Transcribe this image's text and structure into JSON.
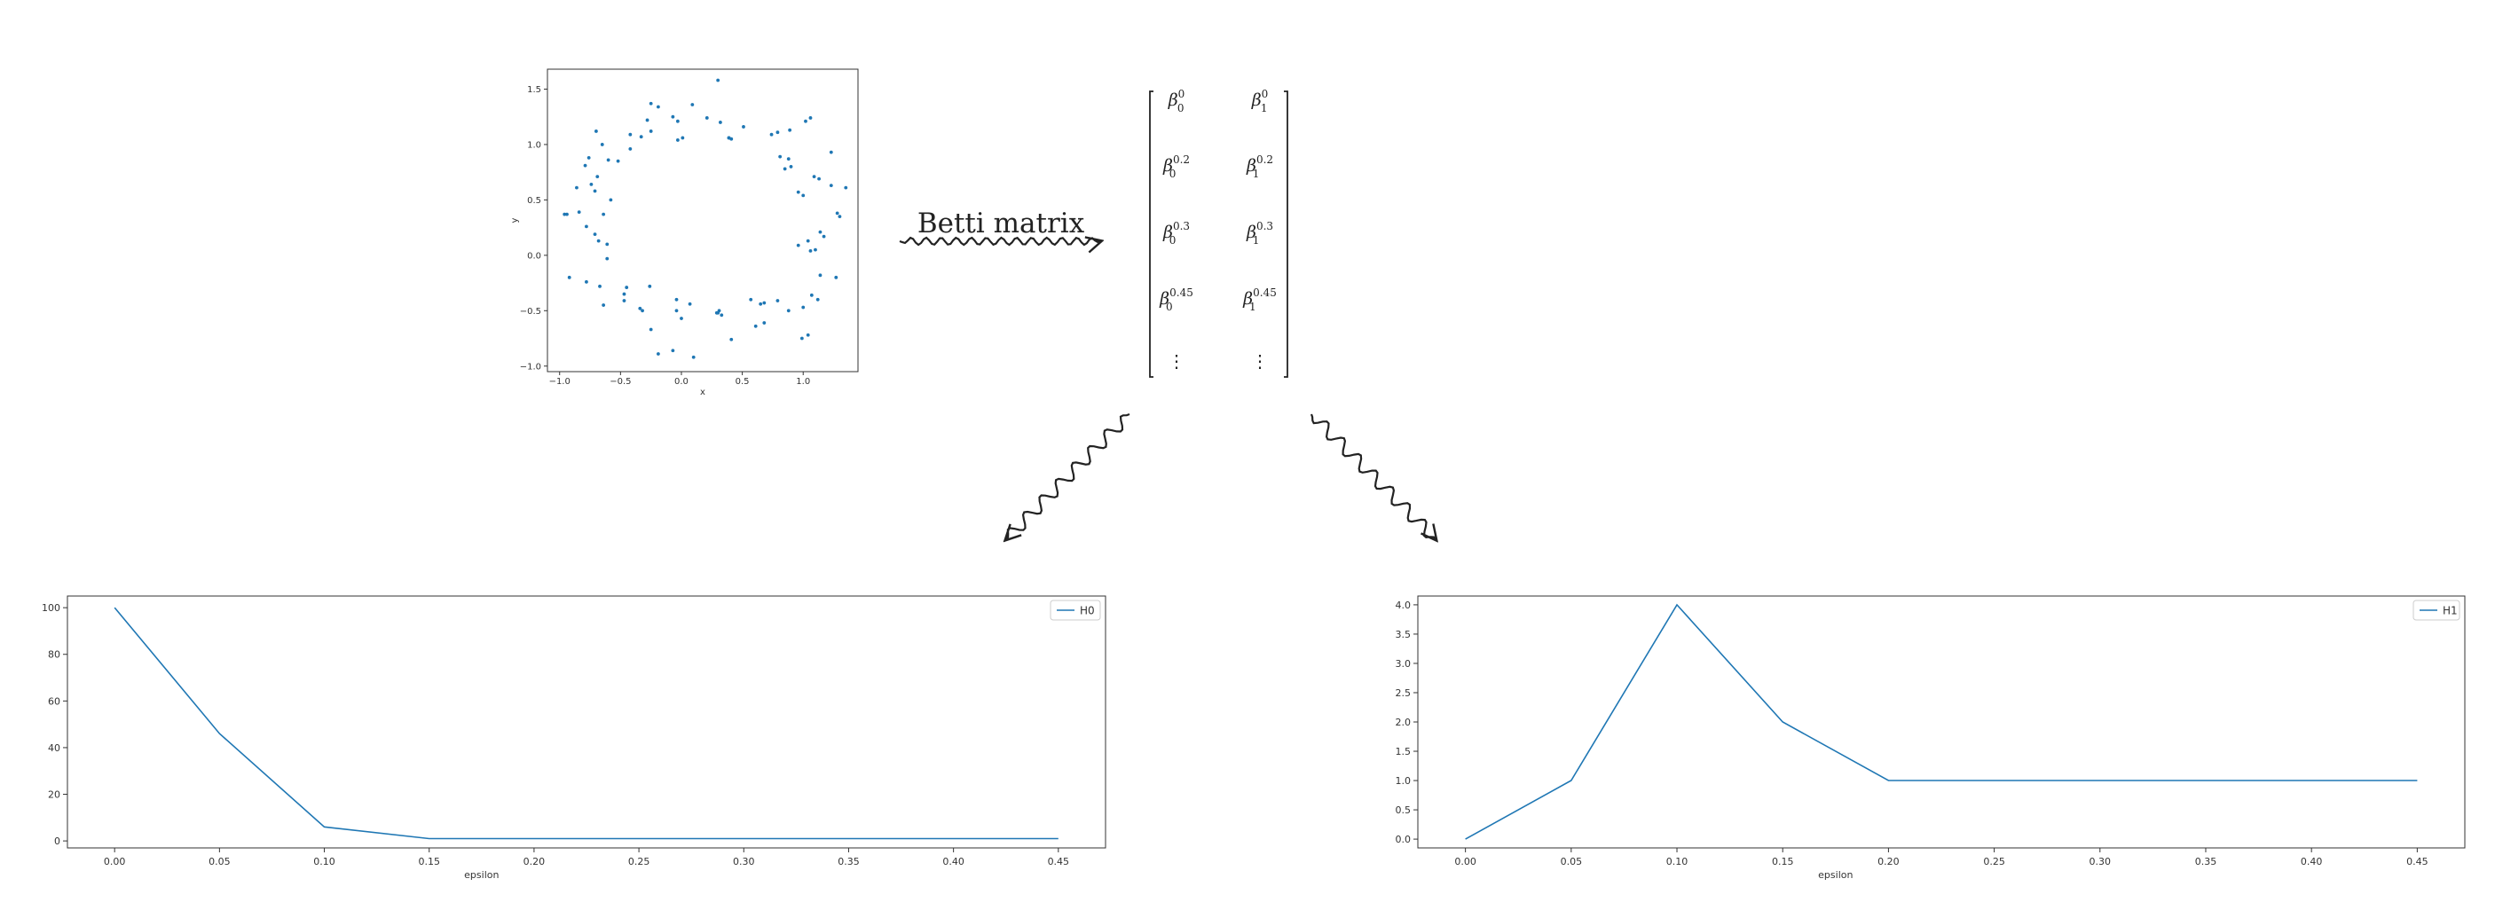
{
  "chart_data": [
    {
      "id": "scatter",
      "type": "scatter",
      "title": "",
      "xlabel": "x",
      "ylabel": "y",
      "xlim": [
        -1.1,
        1.45
      ],
      "ylim": [
        -1.05,
        1.68
      ],
      "xticks": [
        -1.0,
        -0.5,
        0.0,
        0.5,
        1.0
      ],
      "xtick_labels": [
        "−1.0",
        "−0.5",
        "0.0",
        "0.5",
        "1.0"
      ],
      "yticks": [
        -1.0,
        -0.5,
        0.0,
        0.5,
        1.0,
        1.5
      ],
      "ytick_labels": [
        "−1.0",
        "−0.5",
        "0.0",
        "0.5",
        "1.0",
        "1.5"
      ],
      "color": "#1f77b4",
      "points": [
        [
          0.3,
          1.58
        ],
        [
          0.09,
          1.36
        ],
        [
          0.21,
          1.24
        ],
        [
          0.51,
          1.16
        ],
        [
          0.39,
          1.06
        ],
        [
          -0.25,
          1.37
        ],
        [
          -0.19,
          1.34
        ],
        [
          -0.28,
          1.22
        ],
        [
          -0.33,
          1.07
        ],
        [
          -0.42,
          1.09
        ],
        [
          -0.25,
          1.12
        ],
        [
          -0.07,
          1.25
        ],
        [
          -0.03,
          1.04
        ],
        [
          0.01,
          1.06
        ],
        [
          -0.03,
          1.21
        ],
        [
          -0.7,
          1.12
        ],
        [
          -0.65,
          1.0
        ],
        [
          -0.6,
          0.86
        ],
        [
          -0.52,
          0.85
        ],
        [
          -0.42,
          0.96
        ],
        [
          -0.76,
          0.88
        ],
        [
          -0.79,
          0.81
        ],
        [
          -0.86,
          0.61
        ],
        [
          -0.74,
          0.64
        ],
        [
          -0.69,
          0.71
        ],
        [
          -0.71,
          0.58
        ],
        [
          -0.64,
          0.37
        ],
        [
          -0.58,
          0.5
        ],
        [
          -0.78,
          0.26
        ],
        [
          -0.96,
          0.37
        ],
        [
          -0.84,
          0.39
        ],
        [
          -0.71,
          0.19
        ],
        [
          -0.61,
          0.1
        ],
        [
          -0.68,
          0.13
        ],
        [
          -0.61,
          -0.03
        ],
        [
          -0.92,
          -0.2
        ],
        [
          -0.78,
          -0.24
        ],
        [
          -0.67,
          -0.28
        ],
        [
          -0.64,
          -0.45
        ],
        [
          -0.47,
          -0.35
        ],
        [
          -0.45,
          -0.29
        ],
        [
          -0.47,
          -0.41
        ],
        [
          -0.34,
          -0.48
        ],
        [
          -0.32,
          -0.5
        ],
        [
          -0.26,
          -0.28
        ],
        [
          -0.25,
          -0.67
        ],
        [
          -0.19,
          -0.89
        ],
        [
          -0.07,
          -0.86
        ],
        [
          0.1,
          -0.92
        ],
        [
          -0.04,
          -0.4
        ],
        [
          -0.04,
          -0.5
        ],
        [
          0.07,
          -0.44
        ],
        [
          0.0,
          -0.57
        ],
        [
          0.29,
          -0.52
        ],
        [
          0.33,
          -0.54
        ],
        [
          0.41,
          -0.76
        ],
        [
          0.57,
          -0.4
        ],
        [
          0.65,
          -0.44
        ],
        [
          0.68,
          -0.43
        ],
        [
          0.61,
          -0.64
        ],
        [
          0.68,
          -0.61
        ],
        [
          0.79,
          -0.41
        ],
        [
          0.88,
          -0.5
        ],
        [
          0.99,
          -0.75
        ],
        [
          1.04,
          -0.72
        ],
        [
          1.0,
          -0.47
        ],
        [
          1.07,
          -0.36
        ],
        [
          1.12,
          -0.4
        ],
        [
          1.14,
          -0.18
        ],
        [
          1.27,
          -0.2
        ],
        [
          0.96,
          0.09
        ],
        [
          1.04,
          0.13
        ],
        [
          1.06,
          0.04
        ],
        [
          1.1,
          0.05
        ],
        [
          1.14,
          0.21
        ],
        [
          1.17,
          0.17
        ],
        [
          1.0,
          0.54
        ],
        [
          1.09,
          0.71
        ],
        [
          1.13,
          0.69
        ],
        [
          1.23,
          0.63
        ],
        [
          1.35,
          0.61
        ],
        [
          1.28,
          0.38
        ],
        [
          1.3,
          0.35
        ],
        [
          1.23,
          0.93
        ],
        [
          0.96,
          0.57
        ],
        [
          0.85,
          0.78
        ],
        [
          0.9,
          0.8
        ],
        [
          0.88,
          0.87
        ],
        [
          0.81,
          0.89
        ],
        [
          0.74,
          1.09
        ],
        [
          0.79,
          1.11
        ],
        [
          0.89,
          1.13
        ],
        [
          1.02,
          1.21
        ],
        [
          1.06,
          1.24
        ],
        [
          0.32,
          1.2
        ],
        [
          0.41,
          1.05
        ],
        [
          0.39,
          1.06
        ],
        [
          -0.94,
          0.37
        ],
        [
          0.3,
          -0.52
        ],
        [
          0.31,
          -0.5
        ]
      ]
    },
    {
      "id": "h0",
      "type": "line",
      "title": "",
      "xlabel": "epsilon",
      "ylabel": "",
      "x": [
        0.0,
        0.05,
        0.1,
        0.15,
        0.2,
        0.25,
        0.3,
        0.35,
        0.4,
        0.45
      ],
      "xlim": [
        -0.0225,
        0.4725
      ],
      "ylim": [
        -3,
        105
      ],
      "xticks": [
        0.0,
        0.05,
        0.1,
        0.15,
        0.2,
        0.25,
        0.3,
        0.35,
        0.4,
        0.45
      ],
      "xtick_labels": [
        "0.00",
        "0.05",
        "0.10",
        "0.15",
        "0.20",
        "0.25",
        "0.30",
        "0.35",
        "0.40",
        "0.45"
      ],
      "yticks": [
        0,
        20,
        40,
        60,
        80,
        100
      ],
      "ytick_labels": [
        "0",
        "20",
        "40",
        "60",
        "80",
        "100"
      ],
      "legend_position": "top-right",
      "series": [
        {
          "name": "H0",
          "color": "#1f77b4",
          "values": [
            100,
            46,
            6,
            1,
            1,
            1,
            1,
            1,
            1,
            1
          ]
        }
      ]
    },
    {
      "id": "h1",
      "type": "line",
      "title": "",
      "xlabel": "epsilon",
      "ylabel": "",
      "x": [
        0.0,
        0.05,
        0.1,
        0.15,
        0.2,
        0.25,
        0.3,
        0.35,
        0.4,
        0.45
      ],
      "xlim": [
        -0.0225,
        0.4725
      ],
      "ylim": [
        -0.15,
        4.15
      ],
      "xticks": [
        0.0,
        0.05,
        0.1,
        0.15,
        0.2,
        0.25,
        0.3,
        0.35,
        0.4,
        0.45
      ],
      "xtick_labels": [
        "0.00",
        "0.05",
        "0.10",
        "0.15",
        "0.20",
        "0.25",
        "0.30",
        "0.35",
        "0.40",
        "0.45"
      ],
      "yticks": [
        0.0,
        0.5,
        1.0,
        1.5,
        2.0,
        2.5,
        3.0,
        3.5,
        4.0
      ],
      "ytick_labels": [
        "0.0",
        "0.5",
        "1.0",
        "1.5",
        "2.0",
        "2.5",
        "3.0",
        "3.5",
        "4.0"
      ],
      "legend_position": "top-right",
      "series": [
        {
          "name": "H1",
          "color": "#1f77b4",
          "values": [
            0,
            1,
            4,
            2,
            1,
            1,
            1,
            1,
            1,
            1
          ]
        }
      ]
    }
  ],
  "diagram": {
    "arrow_label": "Betti matrix",
    "matrix": {
      "columns": [
        "0",
        "1"
      ],
      "rows": [
        {
          "threshold": "0"
        },
        {
          "threshold": "0.2"
        },
        {
          "threshold": "0.3"
        },
        {
          "threshold": "0.45"
        }
      ],
      "symbol": "β",
      "ellipsis": "⋮"
    }
  }
}
